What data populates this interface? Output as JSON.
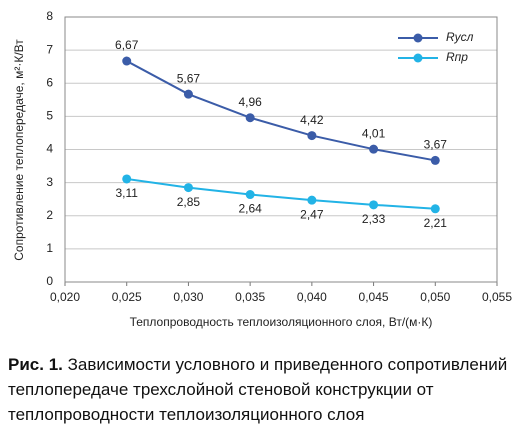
{
  "chart_data": {
    "type": "line",
    "y_label": "Сопротивление теплопередаче, м²·К/Вт",
    "x_label": "Теплопроводность теплоизоляционного слоя, Вт/(м·К)",
    "x": [
      0.025,
      0.03,
      0.035,
      0.04,
      0.045,
      0.05
    ],
    "series": [
      {
        "name": "Rусл",
        "color": "#3b5ca8",
        "values": [
          6.67,
          5.67,
          4.96,
          4.42,
          4.01,
          3.67
        ],
        "value_labels": [
          "6,67",
          "5,67",
          "4,96",
          "4,42",
          "4,01",
          "3,67"
        ]
      },
      {
        "name": "Rпр",
        "color": "#22b3e6",
        "values": [
          3.11,
          2.85,
          2.64,
          2.47,
          2.33,
          2.21
        ],
        "value_labels": [
          "3,11",
          "2,85",
          "2,64",
          "2,47",
          "2,33",
          "2,21"
        ]
      }
    ],
    "xlim": [
      0.02,
      0.055
    ],
    "xticks": [
      {
        "value": 0.02,
        "label": "0,020"
      },
      {
        "value": 0.025,
        "label": "0,025"
      },
      {
        "value": 0.03,
        "label": "0,030"
      },
      {
        "value": 0.035,
        "label": "0,035"
      },
      {
        "value": 0.04,
        "label": "0,040"
      },
      {
        "value": 0.045,
        "label": "0,045"
      },
      {
        "value": 0.05,
        "label": "0,050"
      },
      {
        "value": 0.055,
        "label": "0,055"
      }
    ],
    "ylim": [
      0,
      8
    ],
    "yticks": [
      0,
      1,
      2,
      3,
      4,
      5,
      6,
      7,
      8
    ],
    "grid": true,
    "legend": "top-right"
  },
  "caption": {
    "label": "Рис. 1.",
    "text": "Зависимости условного и приведенного сопротивлений теплопередаче трехслойной стеновой конструкции от теплопроводности теплоизоляционного слоя"
  }
}
